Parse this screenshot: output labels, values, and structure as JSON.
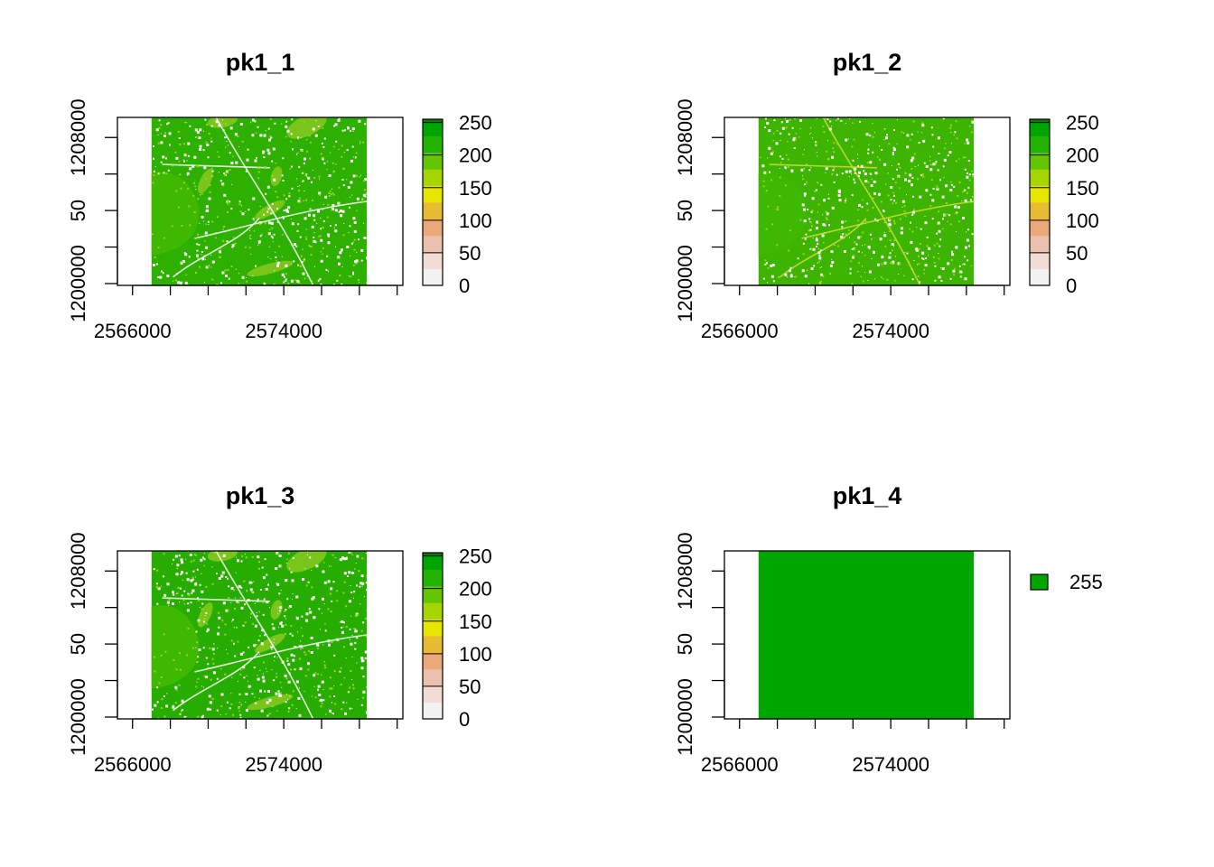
{
  "chart_data": [
    {
      "type": "heatmap",
      "title": "pk1_1",
      "x_ticks": [
        2566000,
        2568000,
        2570000,
        2572000,
        2574000,
        2576000,
        2578000,
        2580000
      ],
      "x_tick_labels": [
        "2566000",
        "2574000"
      ],
      "y_ticks": [
        1200000,
        1202000,
        1204000,
        1206000,
        1208000
      ],
      "y_tick_labels": [
        "1200000",
        "50",
        "1208000"
      ],
      "xlim": [
        2565200,
        2580300
      ],
      "ylim": [
        1199900,
        1209100
      ],
      "raster_extent": {
        "x": [
          2567000,
          2578400
        ],
        "y": [
          1199900,
          1209100
        ]
      },
      "value_range": [
        0,
        255
      ],
      "legend": {
        "type": "continuous",
        "ticks": [
          0,
          50,
          100,
          150,
          200,
          250
        ],
        "tick_labels": [
          "0",
          "50",
          "100",
          "150",
          "200",
          "250"
        ]
      },
      "texture": "landcover-a",
      "fill_color": "#2db000"
    },
    {
      "type": "heatmap",
      "title": "pk1_2",
      "x_ticks": [
        2566000,
        2568000,
        2570000,
        2572000,
        2574000,
        2576000,
        2578000,
        2580000
      ],
      "x_tick_labels": [
        "2566000",
        "2574000"
      ],
      "y_ticks": [
        1200000,
        1202000,
        1204000,
        1206000,
        1208000
      ],
      "y_tick_labels": [
        "1200000",
        "50",
        "1208000"
      ],
      "xlim": [
        2565200,
        2580300
      ],
      "ylim": [
        1199900,
        1209100
      ],
      "raster_extent": {
        "x": [
          2567000,
          2578400
        ],
        "y": [
          1199900,
          1209100
        ]
      },
      "value_range": [
        0,
        255
      ],
      "legend": {
        "type": "continuous",
        "ticks": [
          0,
          50,
          100,
          150,
          200,
          250
        ],
        "tick_labels": [
          "0",
          "50",
          "100",
          "150",
          "200",
          "250"
        ]
      },
      "texture": "landcover-b",
      "fill_color": "#3cb400"
    },
    {
      "type": "heatmap",
      "title": "pk1_3",
      "x_ticks": [
        2566000,
        2568000,
        2570000,
        2572000,
        2574000,
        2576000,
        2578000,
        2580000
      ],
      "x_tick_labels": [
        "2566000",
        "2574000"
      ],
      "y_ticks": [
        1200000,
        1202000,
        1204000,
        1206000,
        1208000
      ],
      "y_tick_labels": [
        "1200000",
        "50",
        "1208000"
      ],
      "xlim": [
        2565200,
        2580300
      ],
      "ylim": [
        1199900,
        1209100
      ],
      "raster_extent": {
        "x": [
          2567000,
          2578400
        ],
        "y": [
          1199900,
          1209100
        ]
      },
      "value_range": [
        0,
        255
      ],
      "legend": {
        "type": "continuous",
        "ticks": [
          0,
          50,
          100,
          150,
          200,
          250
        ],
        "tick_labels": [
          "0",
          "50",
          "100",
          "150",
          "200",
          "250"
        ]
      },
      "texture": "landcover-a",
      "fill_color": "#27ad00"
    },
    {
      "type": "heatmap",
      "title": "pk1_4",
      "x_ticks": [
        2566000,
        2568000,
        2570000,
        2572000,
        2574000,
        2576000,
        2578000,
        2580000
      ],
      "x_tick_labels": [
        "2566000",
        "2574000"
      ],
      "y_ticks": [
        1200000,
        1202000,
        1204000,
        1206000,
        1208000
      ],
      "y_tick_labels": [
        "1200000",
        "50",
        "1208000"
      ],
      "xlim": [
        2565200,
        2580300
      ],
      "ylim": [
        1199900,
        1209100
      ],
      "raster_extent": {
        "x": [
          2567000,
          2578400
        ],
        "y": [
          1199900,
          1209100
        ]
      },
      "value_range": [
        255,
        255
      ],
      "legend": {
        "type": "categorical",
        "entries": [
          {
            "label": "255",
            "color": "#00a600"
          }
        ]
      },
      "texture": "none",
      "fill_color": "#00a600"
    }
  ],
  "colors": {
    "ramp": [
      "#f2f2f2",
      "#f2dcd4",
      "#ecc0ae",
      "#eba87a",
      "#e8bb33",
      "#e6e600",
      "#a6d600",
      "#63c600",
      "#23b300",
      "#00a600"
    ],
    "legend_top": "#107810",
    "light_patch": "#89c91e",
    "line_yellow": "#d2dc3c",
    "cell_white": "#ffffff"
  }
}
